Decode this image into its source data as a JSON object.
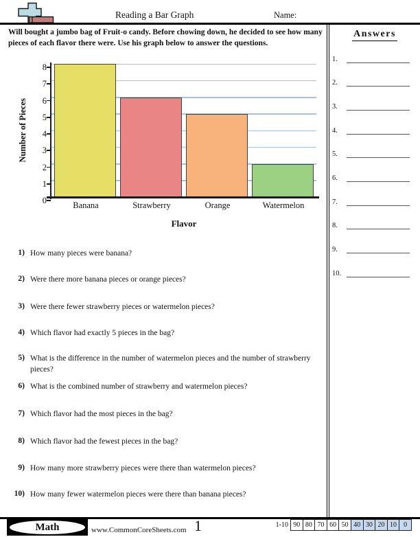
{
  "header": {
    "title": "Reading a Bar Graph",
    "name_label": "Name:"
  },
  "instructions": "Will bought a jumbo bag of Fruit-o candy. Before chowing down, he decided to see how many pieces of each flavor there were. Use his graph below to answer the questions.",
  "chart_data": {
    "type": "bar",
    "title": "",
    "categories": [
      "Banana",
      "Strawberry",
      "Orange",
      "Watermelon"
    ],
    "values": [
      8,
      6,
      5,
      2
    ],
    "bar_colors": [
      "#e5df66",
      "#e98585",
      "#f7b37b",
      "#9cd083"
    ],
    "xlabel": "Flavor",
    "ylabel": "Number of Pieces",
    "ylim": [
      0,
      8
    ],
    "yticks": [
      0,
      1,
      2,
      3,
      4,
      5,
      6,
      7,
      8
    ],
    "grid": "horizontal gridlines on",
    "gridline_color": "#a9c2d8",
    "legend": "none"
  },
  "answers_panel": {
    "heading": "Answers",
    "slots": [
      "1.",
      "2.",
      "3.",
      "4.",
      "5.",
      "6.",
      "7.",
      "8.",
      "9.",
      "10."
    ]
  },
  "questions": [
    {
      "num": "1)",
      "text": "How many pieces were banana?"
    },
    {
      "num": "2)",
      "text": "Were there more banana pieces or orange pieces?"
    },
    {
      "num": "3)",
      "text": "Were there fewer strawberry pieces or watermelon pieces?"
    },
    {
      "num": "4)",
      "text": "Which flavor had exactly 5 pieces in the bag?"
    },
    {
      "num": "5)",
      "text": "What is the difference in the number of watermelon pieces and the number of strawberry pieces?"
    },
    {
      "num": "6)",
      "text": "What is the combined number of strawberry and watermelon pieces?"
    },
    {
      "num": "7)",
      "text": "Which flavor had the most pieces in the bag?"
    },
    {
      "num": "8)",
      "text": "Which flavor had the fewest pieces in the bag?"
    },
    {
      "num": "9)",
      "text": "How many more strawberry pieces were there than watermelon pieces?"
    },
    {
      "num": "10)",
      "text": "How many fewer watermelon pieces were there than banana pieces?"
    }
  ],
  "footer": {
    "brand": "Math",
    "website": "www.CommonCoreSheets.com",
    "page": "1",
    "score_label": "1-10",
    "highlight_color": "#c6d9f1",
    "score_cells": [
      {
        "v": "90",
        "hl": false
      },
      {
        "v": "80",
        "hl": false
      },
      {
        "v": "70",
        "hl": false
      },
      {
        "v": "60",
        "hl": false
      },
      {
        "v": "50",
        "hl": false
      },
      {
        "v": "40",
        "hl": true
      },
      {
        "v": "30",
        "hl": true
      },
      {
        "v": "20",
        "hl": true
      },
      {
        "v": "10",
        "hl": true
      },
      {
        "v": "0",
        "hl": true
      }
    ]
  }
}
